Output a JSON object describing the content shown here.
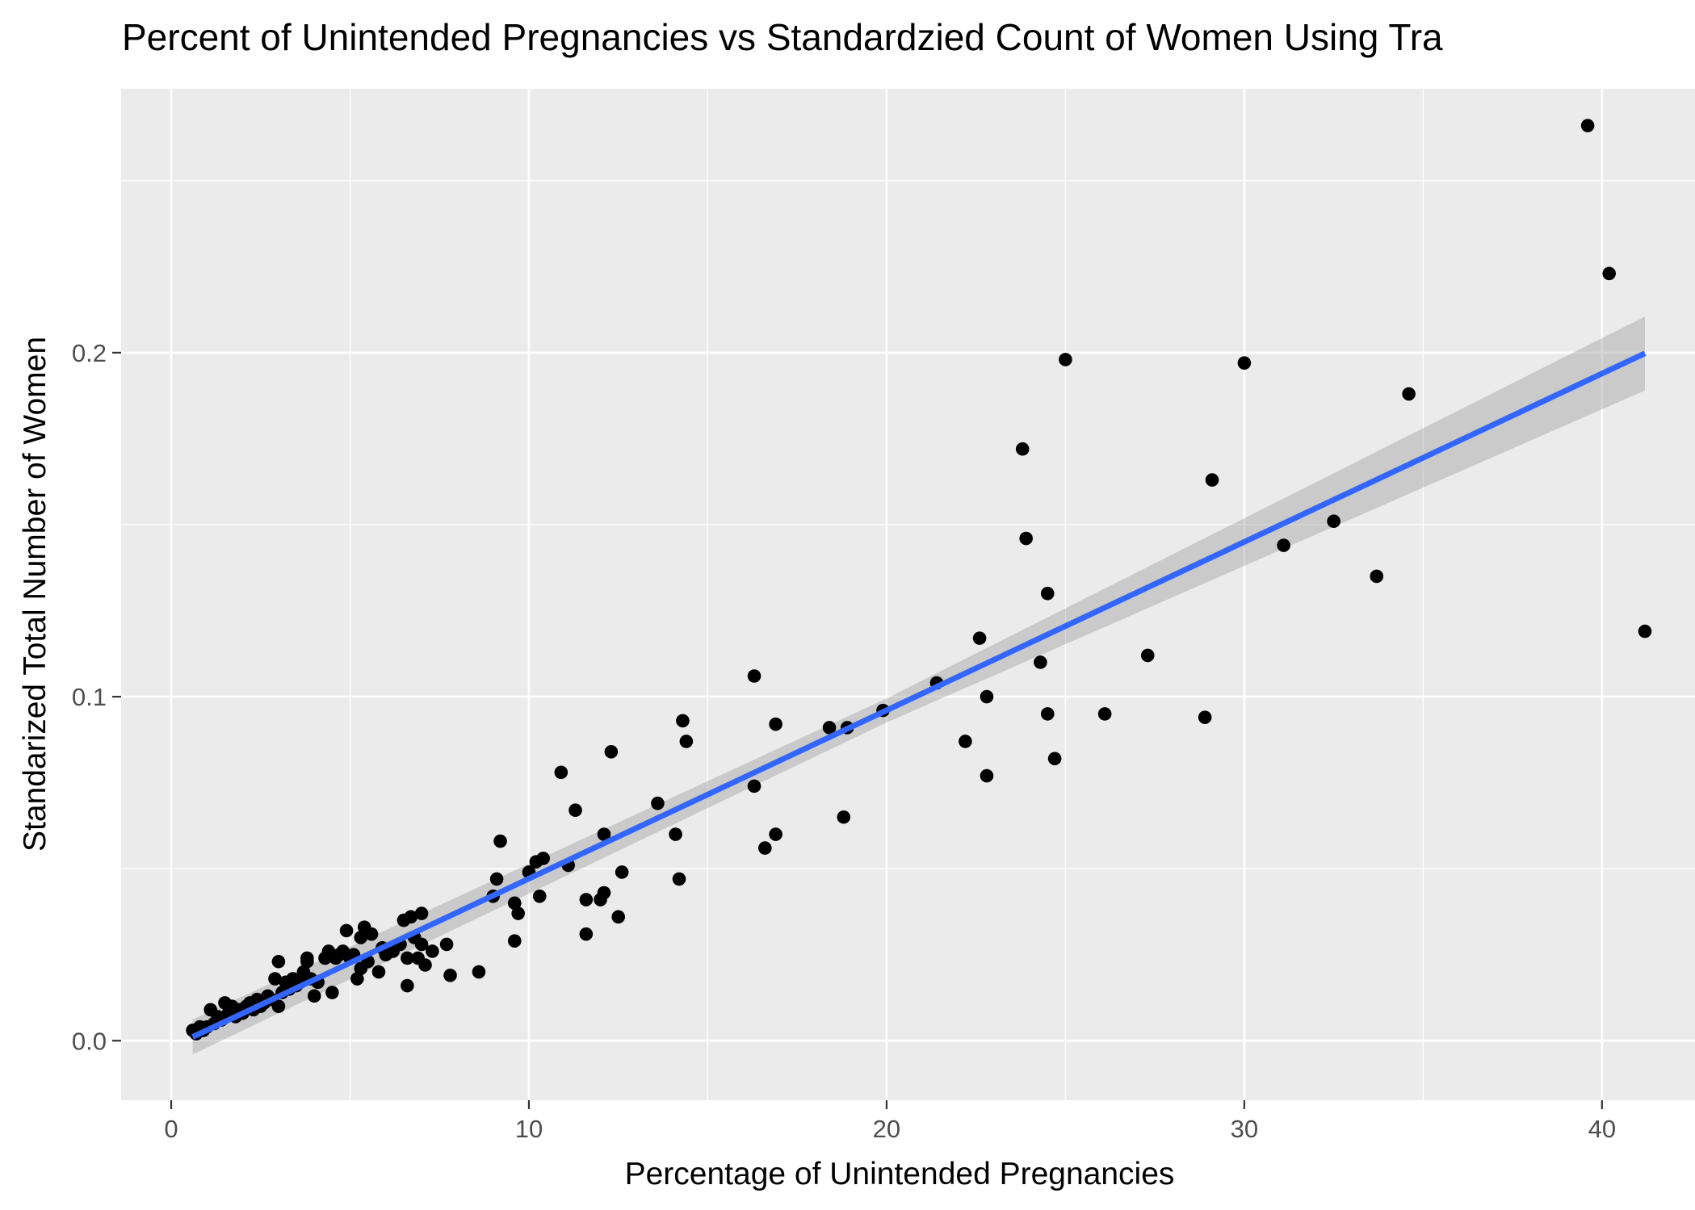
{
  "chart_data": {
    "type": "scatter",
    "title": "Percent of Unintended Pregnancies vs Standardzied Count of Women Using Tra",
    "xlabel": "Percentage of Unintended Pregnancies",
    "ylabel": "Standarized Total Number of Women",
    "xlim": [
      -1.4,
      42.6
    ],
    "ylim": [
      -0.0173,
      0.2767
    ],
    "x_ticks": [
      0,
      10,
      20,
      30,
      40
    ],
    "x_tick_labels": [
      "0",
      "10",
      "20",
      "30",
      "40"
    ],
    "y_ticks": [
      0.0,
      0.1,
      0.2
    ],
    "y_tick_labels": [
      "0.0",
      "0.1",
      "0.2"
    ],
    "grid": true,
    "point_color": "#000000",
    "fit_line_color": "#3366ff",
    "ribbon_color": "#999999",
    "panel_background": "#ebebeb",
    "points": [
      [
        0.6,
        0.003
      ],
      [
        0.7,
        0.002
      ],
      [
        0.8,
        0.004
      ],
      [
        0.9,
        0.003
      ],
      [
        1.0,
        0.004
      ],
      [
        1.1,
        0.009
      ],
      [
        1.2,
        0.005
      ],
      [
        1.3,
        0.007
      ],
      [
        1.4,
        0.006
      ],
      [
        1.5,
        0.011
      ],
      [
        1.6,
        0.008
      ],
      [
        1.7,
        0.01
      ],
      [
        1.8,
        0.007
      ],
      [
        1.9,
        0.009
      ],
      [
        2.0,
        0.008
      ],
      [
        2.1,
        0.01
      ],
      [
        2.2,
        0.011
      ],
      [
        2.3,
        0.009
      ],
      [
        2.4,
        0.012
      ],
      [
        2.5,
        0.01
      ],
      [
        2.6,
        0.011
      ],
      [
        2.7,
        0.013
      ],
      [
        2.8,
        0.012
      ],
      [
        2.9,
        0.018
      ],
      [
        3.0,
        0.023
      ],
      [
        3.0,
        0.01
      ],
      [
        3.1,
        0.014
      ],
      [
        3.2,
        0.017
      ],
      [
        3.3,
        0.015
      ],
      [
        3.4,
        0.018
      ],
      [
        3.5,
        0.016
      ],
      [
        3.6,
        0.017
      ],
      [
        3.7,
        0.02
      ],
      [
        3.8,
        0.023
      ],
      [
        3.8,
        0.024
      ],
      [
        3.9,
        0.018
      ],
      [
        4.0,
        0.013
      ],
      [
        4.1,
        0.017
      ],
      [
        4.3,
        0.024
      ],
      [
        4.4,
        0.026
      ],
      [
        4.5,
        0.014
      ],
      [
        4.6,
        0.024
      ],
      [
        4.7,
        0.025
      ],
      [
        4.8,
        0.026
      ],
      [
        4.9,
        0.032
      ],
      [
        5.0,
        0.024
      ],
      [
        5.1,
        0.025
      ],
      [
        5.2,
        0.018
      ],
      [
        5.3,
        0.021
      ],
      [
        5.3,
        0.03
      ],
      [
        5.4,
        0.033
      ],
      [
        5.5,
        0.023
      ],
      [
        5.6,
        0.031
      ],
      [
        5.8,
        0.02
      ],
      [
        5.9,
        0.027
      ],
      [
        6.0,
        0.025
      ],
      [
        6.2,
        0.026
      ],
      [
        6.4,
        0.028
      ],
      [
        6.5,
        0.035
      ],
      [
        6.6,
        0.024
      ],
      [
        6.6,
        0.016
      ],
      [
        6.7,
        0.036
      ],
      [
        6.8,
        0.03
      ],
      [
        6.9,
        0.024
      ],
      [
        7.0,
        0.028
      ],
      [
        7.0,
        0.037
      ],
      [
        7.1,
        0.022
      ],
      [
        7.3,
        0.026
      ],
      [
        7.7,
        0.028
      ],
      [
        7.8,
        0.019
      ],
      [
        8.6,
        0.02
      ],
      [
        9.0,
        0.042
      ],
      [
        9.1,
        0.047
      ],
      [
        9.2,
        0.058
      ],
      [
        9.6,
        0.04
      ],
      [
        9.6,
        0.029
      ],
      [
        9.7,
        0.037
      ],
      [
        10.0,
        0.049
      ],
      [
        10.2,
        0.052
      ],
      [
        10.3,
        0.042
      ],
      [
        10.4,
        0.053
      ],
      [
        10.9,
        0.078
      ],
      [
        11.1,
        0.051
      ],
      [
        11.3,
        0.067
      ],
      [
        11.6,
        0.031
      ],
      [
        11.6,
        0.041
      ],
      [
        12.0,
        0.041
      ],
      [
        12.1,
        0.043
      ],
      [
        12.1,
        0.06
      ],
      [
        12.3,
        0.084
      ],
      [
        12.5,
        0.036
      ],
      [
        12.6,
        0.049
      ],
      [
        13.6,
        0.069
      ],
      [
        14.1,
        0.06
      ],
      [
        14.2,
        0.047
      ],
      [
        14.3,
        0.093
      ],
      [
        14.4,
        0.087
      ],
      [
        16.3,
        0.074
      ],
      [
        16.3,
        0.106
      ],
      [
        16.6,
        0.056
      ],
      [
        16.9,
        0.06
      ],
      [
        16.9,
        0.092
      ],
      [
        18.4,
        0.091
      ],
      [
        18.8,
        0.065
      ],
      [
        18.9,
        0.091
      ],
      [
        19.9,
        0.096
      ],
      [
        21.4,
        0.104
      ],
      [
        22.2,
        0.087
      ],
      [
        22.6,
        0.117
      ],
      [
        22.8,
        0.077
      ],
      [
        22.8,
        0.1
      ],
      [
        23.8,
        0.172
      ],
      [
        23.9,
        0.146
      ],
      [
        24.3,
        0.11
      ],
      [
        24.5,
        0.13
      ],
      [
        24.5,
        0.095
      ],
      [
        24.7,
        0.082
      ],
      [
        25.0,
        0.198
      ],
      [
        26.1,
        0.095
      ],
      [
        27.3,
        0.112
      ],
      [
        28.9,
        0.094
      ],
      [
        29.1,
        0.163
      ],
      [
        30.0,
        0.197
      ],
      [
        31.1,
        0.144
      ],
      [
        32.5,
        0.151
      ],
      [
        33.7,
        0.135
      ],
      [
        34.6,
        0.188
      ],
      [
        39.6,
        0.266
      ],
      [
        40.2,
        0.223
      ],
      [
        41.2,
        0.119
      ]
    ],
    "fit": {
      "x": [
        0.6,
        41.2
      ],
      "y": [
        0.0011,
        0.1998
      ]
    },
    "ribbon": {
      "x": [
        0.6,
        20.0,
        41.2
      ],
      "lower": [
        -0.004,
        0.0925,
        0.189
      ],
      "upper": [
        0.0062,
        0.0995,
        0.2105
      ]
    }
  }
}
